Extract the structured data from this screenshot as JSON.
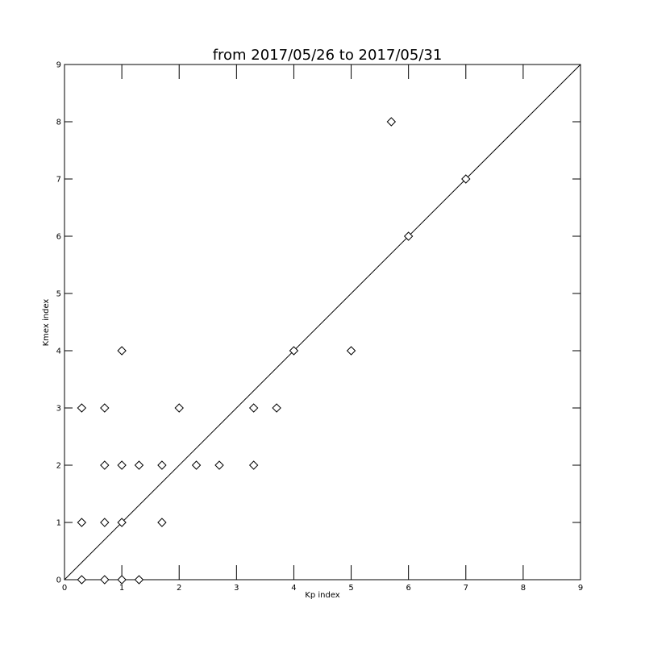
{
  "chart_data": {
    "type": "scatter",
    "title": "from 2017/05/26 to 2017/05/31",
    "xlabel": "Kp index",
    "ylabel": "Kmex index",
    "xlim": [
      0,
      9
    ],
    "ylim": [
      0,
      9
    ],
    "xticks": [
      "0",
      "1",
      "2",
      "3",
      "4",
      "5",
      "6",
      "7",
      "8",
      "9"
    ],
    "yticks": [
      "0",
      "1",
      "2",
      "3",
      "4",
      "5",
      "6",
      "7",
      "8",
      "9"
    ],
    "grid": false,
    "reference_line": "y = x",
    "marker": "diamond",
    "points": [
      {
        "x": 0.3,
        "y": 0
      },
      {
        "x": 0.7,
        "y": 0
      },
      {
        "x": 1.0,
        "y": 0
      },
      {
        "x": 1.3,
        "y": 0
      },
      {
        "x": 0.3,
        "y": 1
      },
      {
        "x": 0.7,
        "y": 1
      },
      {
        "x": 1.0,
        "y": 1
      },
      {
        "x": 1.7,
        "y": 1
      },
      {
        "x": 0.7,
        "y": 2
      },
      {
        "x": 1.0,
        "y": 2
      },
      {
        "x": 1.3,
        "y": 2
      },
      {
        "x": 1.7,
        "y": 2
      },
      {
        "x": 2.3,
        "y": 2
      },
      {
        "x": 2.7,
        "y": 2
      },
      {
        "x": 3.3,
        "y": 2
      },
      {
        "x": 0.3,
        "y": 3
      },
      {
        "x": 0.7,
        "y": 3
      },
      {
        "x": 2.0,
        "y": 3
      },
      {
        "x": 3.3,
        "y": 3
      },
      {
        "x": 3.7,
        "y": 3
      },
      {
        "x": 1.0,
        "y": 4
      },
      {
        "x": 4.0,
        "y": 4
      },
      {
        "x": 5.0,
        "y": 4
      },
      {
        "x": 6.0,
        "y": 6
      },
      {
        "x": 7.0,
        "y": 7
      },
      {
        "x": 5.7,
        "y": 8
      }
    ]
  }
}
